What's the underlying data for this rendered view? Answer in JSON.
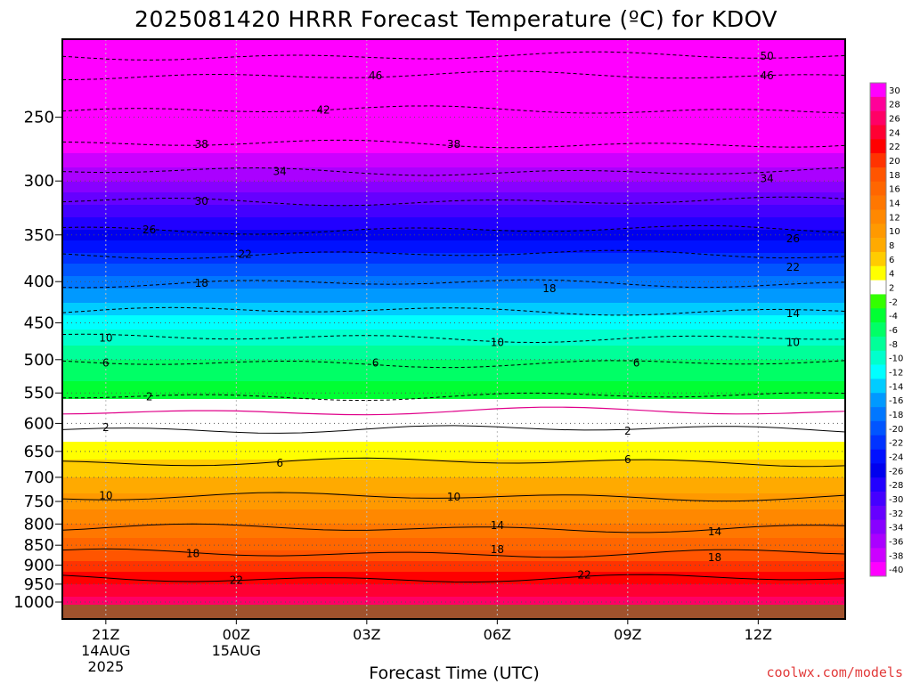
{
  "chart_data": {
    "type": "heatmap",
    "title": "2025081420 HRRR Forecast Temperature (ºC) for KDOV",
    "xlabel": "Forecast Time (UTC)",
    "ylabel": "",
    "credit": "coolwx.com/models",
    "x_ticks": [
      {
        "hour": 1,
        "label": "21Z",
        "sub1": "14AUG",
        "sub2": "2025"
      },
      {
        "hour": 4,
        "label": "00Z",
        "sub1": "15AUG",
        "sub2": ""
      },
      {
        "hour": 7,
        "label": "03Z",
        "sub1": "",
        "sub2": ""
      },
      {
        "hour": 10,
        "label": "06Z",
        "sub1": "",
        "sub2": ""
      },
      {
        "hour": 13,
        "label": "09Z",
        "sub1": "",
        "sub2": ""
      },
      {
        "hour": 16,
        "label": "12Z",
        "sub1": "",
        "sub2": ""
      }
    ],
    "x_range": [
      0,
      18
    ],
    "y_axis": {
      "scale": "log",
      "unit": "hPa",
      "range": [
        1000,
        200
      ],
      "ticks": [
        250,
        300,
        350,
        400,
        450,
        500,
        550,
        600,
        650,
        700,
        750,
        800,
        850,
        900,
        950,
        1000
      ]
    },
    "colorbar": {
      "labels": [
        "30",
        "28",
        "26",
        "24",
        "22",
        "20",
        "18",
        "16",
        "14",
        "12",
        "10",
        "8",
        "6",
        "4",
        "2",
        "-2",
        "-4",
        "-6",
        "-8",
        "-10",
        "-12",
        "-14",
        "-16",
        "-18",
        "-20",
        "-22",
        "-24",
        "-26",
        "-28",
        "-30",
        "-32",
        "-34",
        "-36",
        "-38",
        "-40"
      ],
      "colors": [
        "#ff00ff",
        "#ff0099",
        "#ff0066",
        "#ff0033",
        "#ff0000",
        "#ff3300",
        "#ff5500",
        "#ff6600",
        "#ff7700",
        "#ff8800",
        "#ff9900",
        "#ffaa00",
        "#ffcc00",
        "#ffff00",
        "#ffffff",
        "#33ff00",
        "#00ff33",
        "#00ff66",
        "#00ff99",
        "#00ffcc",
        "#00ffff",
        "#00ccff",
        "#0099ff",
        "#0077ff",
        "#0055ff",
        "#0033ff",
        "#0011ff",
        "#0000ee",
        "#2200ff",
        "#4400ff",
        "#6600ff",
        "#8800ff",
        "#aa00ff",
        "#cc00ff",
        "#ff00ff"
      ]
    },
    "temperature_profile": [
      {
        "p": 1000,
        "t": 27
      },
      {
        "p": 950,
        "t": 24
      },
      {
        "p": 900,
        "t": 21
      },
      {
        "p": 850,
        "t": 17
      },
      {
        "p": 800,
        "t": 14
      },
      {
        "p": 750,
        "t": 11
      },
      {
        "p": 700,
        "t": 8
      },
      {
        "p": 650,
        "t": 5
      },
      {
        "p": 600,
        "t": 2
      },
      {
        "p": 580,
        "t": 0
      },
      {
        "p": 550,
        "t": -3
      },
      {
        "p": 500,
        "t": -6
      },
      {
        "p": 450,
        "t": -11
      },
      {
        "p": 400,
        "t": -17
      },
      {
        "p": 350,
        "t": -25
      },
      {
        "p": 300,
        "t": -34
      },
      {
        "p": 250,
        "t": -43
      },
      {
        "p": 200,
        "t": -53
      }
    ],
    "isotherms": [
      {
        "t": -50,
        "p": 210
      },
      {
        "t": -46,
        "p": 222
      },
      {
        "t": -42,
        "p": 245
      },
      {
        "t": -38,
        "p": 270
      },
      {
        "t": -34,
        "p": 292
      },
      {
        "t": -30,
        "p": 318
      },
      {
        "t": -26,
        "p": 345
      },
      {
        "t": -22,
        "p": 370
      },
      {
        "t": -18,
        "p": 402
      },
      {
        "t": -14,
        "p": 435
      },
      {
        "t": -10,
        "p": 470
      },
      {
        "t": -6,
        "p": 505
      },
      {
        "t": -2,
        "p": 555
      },
      {
        "t": 2,
        "p": 610
      },
      {
        "t": 6,
        "p": 670
      },
      {
        "t": 10,
        "p": 740
      },
      {
        "t": 14,
        "p": 810
      },
      {
        "t": 18,
        "p": 870
      },
      {
        "t": 22,
        "p": 935
      }
    ],
    "contour_labels": [
      {
        "text": "50",
        "x": 16.2,
        "p": 210
      },
      {
        "text": "46",
        "x": 7.2,
        "p": 222
      },
      {
        "text": "46",
        "x": 16.2,
        "p": 222
      },
      {
        "text": "42",
        "x": 6.0,
        "p": 245
      },
      {
        "text": "38",
        "x": 3.2,
        "p": 270
      },
      {
        "text": "38",
        "x": 9.0,
        "p": 270
      },
      {
        "text": "34",
        "x": 5.0,
        "p": 292
      },
      {
        "text": "34",
        "x": 16.2,
        "p": 298
      },
      {
        "text": "30",
        "x": 3.2,
        "p": 318
      },
      {
        "text": "26",
        "x": 2.0,
        "p": 345
      },
      {
        "text": "26",
        "x": 16.8,
        "p": 354
      },
      {
        "text": "22",
        "x": 4.2,
        "p": 370
      },
      {
        "text": "22",
        "x": 16.8,
        "p": 384
      },
      {
        "text": "18",
        "x": 3.2,
        "p": 402
      },
      {
        "text": "18",
        "x": 11.2,
        "p": 408
      },
      {
        "text": "14",
        "x": 16.8,
        "p": 438
      },
      {
        "text": "10",
        "x": 1.0,
        "p": 470
      },
      {
        "text": "10",
        "x": 10.0,
        "p": 476
      },
      {
        "text": "10",
        "x": 16.8,
        "p": 476
      },
      {
        "text": "6",
        "x": 1.0,
        "p": 505
      },
      {
        "text": "6",
        "x": 7.2,
        "p": 505
      },
      {
        "text": "6",
        "x": 13.2,
        "p": 505
      },
      {
        "text": "2",
        "x": 2.0,
        "p": 556
      },
      {
        "text": "2",
        "x": 1.0,
        "p": 607
      },
      {
        "text": "2",
        "x": 13.0,
        "p": 613
      },
      {
        "text": "6",
        "x": 5.0,
        "p": 672
      },
      {
        "text": "6",
        "x": 13.0,
        "p": 665
      },
      {
        "text": "10",
        "x": 1.0,
        "p": 738
      },
      {
        "text": "10",
        "x": 9.0,
        "p": 740
      },
      {
        "text": "14",
        "x": 10.0,
        "p": 803
      },
      {
        "text": "14",
        "x": 15.0,
        "p": 818
      },
      {
        "text": "18",
        "x": 3.0,
        "p": 870
      },
      {
        "text": "18",
        "x": 10.0,
        "p": 860
      },
      {
        "text": "18",
        "x": 15.0,
        "p": 880
      },
      {
        "text": "22",
        "x": 4.0,
        "p": 940
      },
      {
        "text": "22",
        "x": 12.0,
        "p": 925
      }
    ],
    "grid": true,
    "legend": "colorbar right"
  }
}
